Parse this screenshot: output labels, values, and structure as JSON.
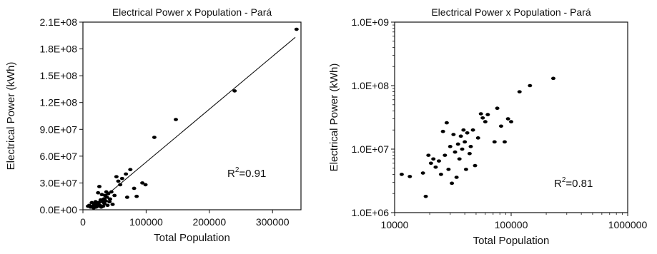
{
  "chart_data": [
    {
      "type": "scatter",
      "title": "Electrical Power  x  Population - Pará",
      "xlabel": "Total Population",
      "ylabel": "Electrical  Power (kWh)",
      "xlim": [
        0,
        345000
      ],
      "ylim": [
        0,
        210000000
      ],
      "x_ticks": [
        0,
        100000,
        200000,
        300000
      ],
      "x_tick_labels": [
        "0",
        "100000",
        "200000",
        "300000"
      ],
      "y_ticks": [
        0,
        30000000,
        60000000,
        90000000,
        120000000,
        150000000,
        180000000,
        210000000
      ],
      "y_tick_labels": [
        "0.0E+00",
        "3.0E+07",
        "6.0E+07",
        "9.0E+07",
        "1.2E+08",
        "1.5E+08",
        "1.8E+08",
        "2.1E+08"
      ],
      "grid": false,
      "annotation": {
        "base": "R",
        "sup": "2",
        "value": "=0.91"
      },
      "trendline": {
        "x": [
          20000,
          336000
        ],
        "y": [
          6000000,
          193000000
        ]
      },
      "points": [
        {
          "x": 338000,
          "y": 202000000
        },
        {
          "x": 240000,
          "y": 133000000
        },
        {
          "x": 147000,
          "y": 101000000
        },
        {
          "x": 113000,
          "y": 81000000
        },
        {
          "x": 99000,
          "y": 28000000
        },
        {
          "x": 94000,
          "y": 30000000
        },
        {
          "x": 85000,
          "y": 15000000
        },
        {
          "x": 81000,
          "y": 24000000
        },
        {
          "x": 75000,
          "y": 45000000
        },
        {
          "x": 70000,
          "y": 14000000
        },
        {
          "x": 68000,
          "y": 40000000
        },
        {
          "x": 62000,
          "y": 35000000
        },
        {
          "x": 59000,
          "y": 28000000
        },
        {
          "x": 56000,
          "y": 32000000
        },
        {
          "x": 53000,
          "y": 37000000
        },
        {
          "x": 50000,
          "y": 16000000
        },
        {
          "x": 47000,
          "y": 6000000
        },
        {
          "x": 45000,
          "y": 20000000
        },
        {
          "x": 43000,
          "y": 12000000
        },
        {
          "x": 42000,
          "y": 9000000
        },
        {
          "x": 40000,
          "y": 18000000
        },
        {
          "x": 39000,
          "y": 5000000
        },
        {
          "x": 38000,
          "y": 14000000
        },
        {
          "x": 37000,
          "y": 20000000
        },
        {
          "x": 36000,
          "y": 10000000
        },
        {
          "x": 35000,
          "y": 16000000
        },
        {
          "x": 34000,
          "y": 7000000
        },
        {
          "x": 33000,
          "y": 12000000
        },
        {
          "x": 32000,
          "y": 4000000
        },
        {
          "x": 31000,
          "y": 9000000
        },
        {
          "x": 30000,
          "y": 17000000
        },
        {
          "x": 29000,
          "y": 3000000
        },
        {
          "x": 28000,
          "y": 11000000
        },
        {
          "x": 27000,
          "y": 5000000
        },
        {
          "x": 26000,
          "y": 26000000
        },
        {
          "x": 25000,
          "y": 8000000
        },
        {
          "x": 24000,
          "y": 19000000
        },
        {
          "x": 23000,
          "y": 4000000
        },
        {
          "x": 22000,
          "y": 7000000
        },
        {
          "x": 21000,
          "y": 3000000
        },
        {
          "x": 20000,
          "y": 9000000
        },
        {
          "x": 19000,
          "y": 5000000
        },
        {
          "x": 18000,
          "y": 6000000
        },
        {
          "x": 17000,
          "y": 2000000
        },
        {
          "x": 15000,
          "y": 4000000
        },
        {
          "x": 14000,
          "y": 8000000
        },
        {
          "x": 12000,
          "y": 3000000
        },
        {
          "x": 10000,
          "y": 5000000
        },
        {
          "x": 8000,
          "y": 4000000
        }
      ]
    },
    {
      "type": "scatter",
      "title": "Electrical Power  x  Population - Pará",
      "xlabel": "Total Population",
      "ylabel": "Electrical Power (kWh)",
      "x_scale": "log",
      "y_scale": "log",
      "xlim": [
        10000,
        1000000
      ],
      "ylim": [
        1000000,
        1000000000
      ],
      "x_ticks": [
        10000,
        100000,
        1000000
      ],
      "x_tick_labels": [
        "10000",
        "100000",
        "1000000"
      ],
      "y_ticks": [
        1000000,
        10000000,
        100000000,
        1000000000
      ],
      "y_tick_labels": [
        "1.0E+06",
        "1.0E+07",
        "1.0E+08",
        "1.0E+09"
      ],
      "grid": false,
      "annotation": {
        "base": "R",
        "sup": "2",
        "value": "=0.81"
      },
      "points": [
        {
          "x": 230000,
          "y": 130000000
        },
        {
          "x": 145000,
          "y": 100000000
        },
        {
          "x": 118000,
          "y": 80000000
        },
        {
          "x": 100000,
          "y": 27000000
        },
        {
          "x": 94000,
          "y": 30000000
        },
        {
          "x": 88000,
          "y": 13000000
        },
        {
          "x": 82000,
          "y": 23000000
        },
        {
          "x": 76000,
          "y": 44000000
        },
        {
          "x": 72000,
          "y": 13000000
        },
        {
          "x": 63000,
          "y": 35000000
        },
        {
          "x": 60000,
          "y": 27000000
        },
        {
          "x": 57000,
          "y": 31000000
        },
        {
          "x": 55000,
          "y": 36000000
        },
        {
          "x": 52000,
          "y": 15000000
        },
        {
          "x": 49000,
          "y": 5500000
        },
        {
          "x": 47000,
          "y": 20000000
        },
        {
          "x": 45000,
          "y": 11000000
        },
        {
          "x": 44000,
          "y": 8500000
        },
        {
          "x": 42000,
          "y": 18000000
        },
        {
          "x": 41000,
          "y": 4800000
        },
        {
          "x": 40000,
          "y": 13000000
        },
        {
          "x": 39000,
          "y": 20000000
        },
        {
          "x": 38000,
          "y": 10000000
        },
        {
          "x": 37000,
          "y": 16000000
        },
        {
          "x": 36000,
          "y": 7000000
        },
        {
          "x": 35000,
          "y": 12000000
        },
        {
          "x": 34000,
          "y": 3600000
        },
        {
          "x": 33000,
          "y": 9000000
        },
        {
          "x": 32000,
          "y": 17000000
        },
        {
          "x": 31000,
          "y": 2900000
        },
        {
          "x": 30000,
          "y": 11000000
        },
        {
          "x": 29000,
          "y": 4800000
        },
        {
          "x": 28000,
          "y": 26000000
        },
        {
          "x": 27000,
          "y": 8000000
        },
        {
          "x": 26000,
          "y": 19000000
        },
        {
          "x": 25000,
          "y": 4000000
        },
        {
          "x": 24000,
          "y": 6500000
        },
        {
          "x": 22500,
          "y": 5200000
        },
        {
          "x": 21500,
          "y": 7000000
        },
        {
          "x": 20500,
          "y": 6000000
        },
        {
          "x": 19500,
          "y": 8000000
        },
        {
          "x": 18500,
          "y": 1800000
        },
        {
          "x": 17500,
          "y": 4200000
        },
        {
          "x": 13500,
          "y": 3700000
        },
        {
          "x": 11500,
          "y": 4000000
        }
      ]
    }
  ]
}
